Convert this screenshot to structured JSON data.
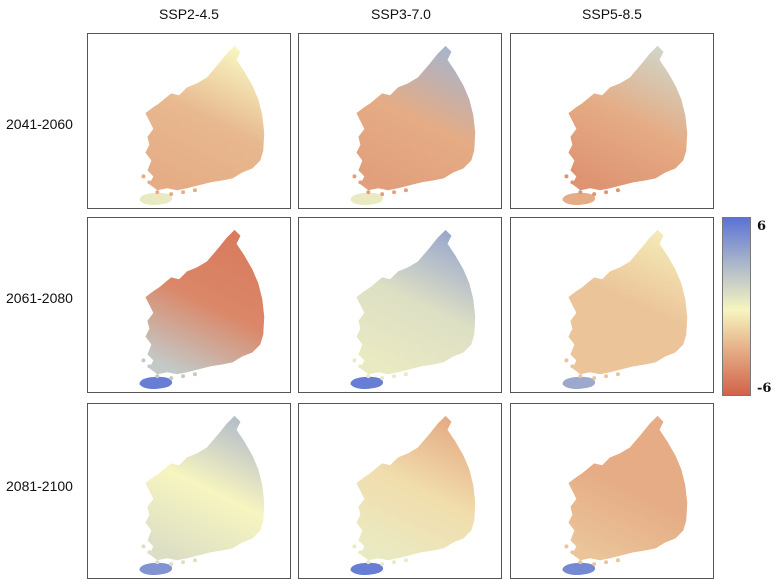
{
  "columns": [
    {
      "label": "SSP2-4.5"
    },
    {
      "label": "SSP3-7.0"
    },
    {
      "label": "SSP5-8.5"
    }
  ],
  "rows": [
    {
      "label": "2041-2060"
    },
    {
      "label": "2061-2080"
    },
    {
      "label": "2081-2100"
    }
  ],
  "legend": {
    "max": "6",
    "min": "-6",
    "color_top": "#5b72d6",
    "color_mid": "#f7f5c0",
    "color_bottom": "#d2624a"
  },
  "panels": [
    {
      "row": 0,
      "col": 0,
      "north": 0.0,
      "center": -2.5,
      "south": -3.0,
      "jeju": 0.5
    },
    {
      "row": 0,
      "col": 1,
      "north": 3.0,
      "center": -3.0,
      "south": -3.5,
      "jeju": 0.5
    },
    {
      "row": 0,
      "col": 2,
      "north": 1.5,
      "center": -3.0,
      "south": -4.0,
      "jeju": -3.0
    },
    {
      "row": 1,
      "col": 0,
      "north": -5.0,
      "center": -4.5,
      "south": 2.0,
      "jeju": 5.5
    },
    {
      "row": 1,
      "col": 1,
      "north": 3.5,
      "center": 1.0,
      "south": 0.5,
      "jeju": 5.5
    },
    {
      "row": 1,
      "col": 2,
      "north": -0.5,
      "center": -2.0,
      "south": -2.0,
      "jeju": 3.5
    },
    {
      "row": 2,
      "col": 0,
      "north": 2.5,
      "center": 0.0,
      "south": 1.0,
      "jeju": 4.5
    },
    {
      "row": 2,
      "col": 1,
      "north": -3.0,
      "center": -1.0,
      "south": 0.5,
      "jeju": 5.5
    },
    {
      "row": 2,
      "col": 2,
      "north": -3.0,
      "center": -3.0,
      "south": -2.0,
      "jeju": 5.0
    }
  ]
}
